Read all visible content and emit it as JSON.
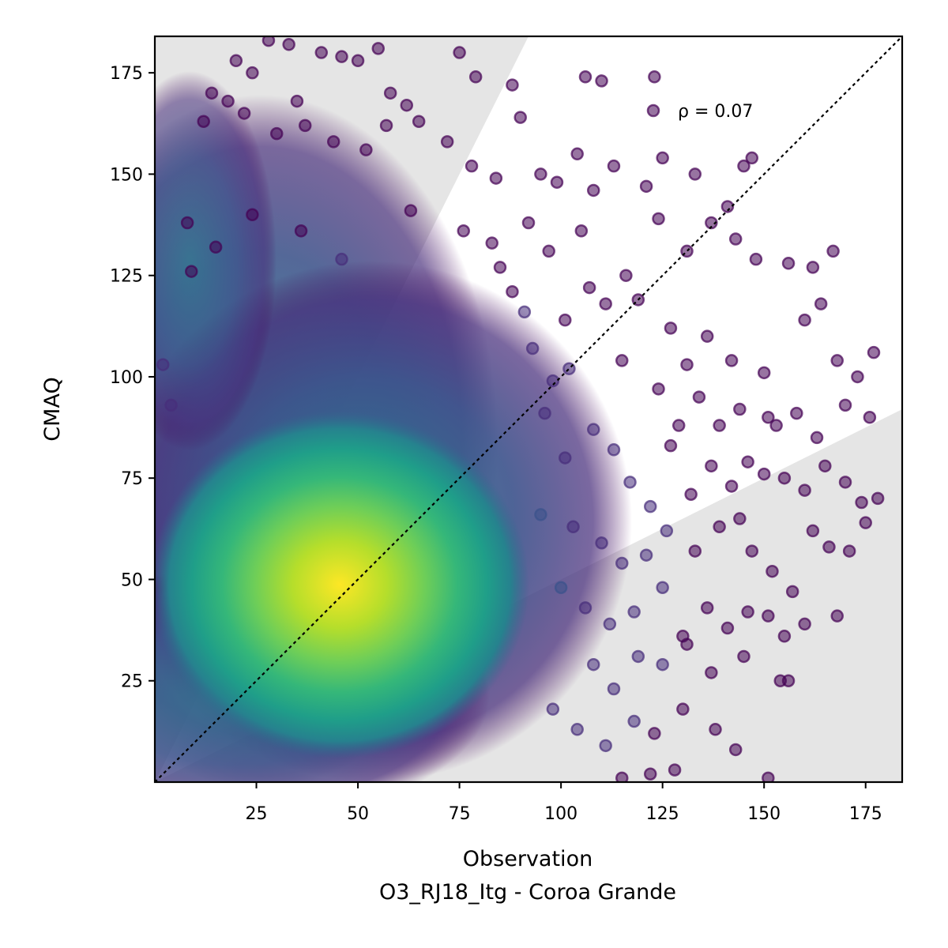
{
  "chart_data": {
    "type": "scatter",
    "xlabel": "Observation",
    "subtitle": "O3_RJ18_Itg - Coroa Grande",
    "ylabel": "CMAQ",
    "xlim": [
      0,
      184
    ],
    "ylim": [
      0,
      184
    ],
    "x_ticks": [
      25,
      50,
      75,
      100,
      125,
      150,
      175
    ],
    "y_ticks": [
      25,
      50,
      75,
      100,
      125,
      150,
      175
    ],
    "grid": false,
    "legend": {
      "label": "ρ = 0.07",
      "placement": "top-right"
    },
    "reference_line": {
      "label": "1:1",
      "style": "dotted",
      "color": "#000000"
    },
    "shaded_regions": [
      {
        "description": "factor-of-2 band above",
        "x": [
          0,
          92
        ],
        "y": [
          0,
          184
        ],
        "color": "#e5e5e5"
      },
      {
        "description": "factor-of-2 band below",
        "x": [
          0,
          184
        ],
        "y": [
          0,
          92
        ],
        "color": "#e5e5e5"
      }
    ],
    "colormap": "viridis (point density)",
    "density_peak": [
      48,
      50
    ],
    "series": [
      {
        "values": [
          [
            20,
            178
          ],
          [
            24,
            175
          ],
          [
            28,
            183
          ],
          [
            33,
            182
          ],
          [
            35,
            168
          ],
          [
            41,
            180
          ],
          [
            46,
            179
          ],
          [
            50,
            178
          ],
          [
            55,
            181
          ],
          [
            58,
            170
          ],
          [
            62,
            167
          ],
          [
            75,
            180
          ],
          [
            79,
            174
          ],
          [
            88,
            172
          ],
          [
            90,
            164
          ],
          [
            106,
            174
          ],
          [
            110,
            173
          ],
          [
            123,
            174
          ],
          [
            12,
            163
          ],
          [
            14,
            170
          ],
          [
            18,
            168
          ],
          [
            22,
            165
          ],
          [
            30,
            160
          ],
          [
            37,
            162
          ],
          [
            44,
            158
          ],
          [
            52,
            156
          ],
          [
            57,
            162
          ],
          [
            65,
            163
          ],
          [
            72,
            158
          ],
          [
            78,
            152
          ],
          [
            84,
            149
          ],
          [
            95,
            150
          ],
          [
            99,
            148
          ],
          [
            104,
            155
          ],
          [
            108,
            146
          ],
          [
            113,
            152
          ],
          [
            121,
            147
          ],
          [
            125,
            154
          ],
          [
            133,
            150
          ],
          [
            141,
            142
          ],
          [
            145,
            152
          ],
          [
            147,
            154
          ],
          [
            8,
            138
          ],
          [
            15,
            132
          ],
          [
            24,
            140
          ],
          [
            36,
            136
          ],
          [
            46,
            129
          ],
          [
            63,
            141
          ],
          [
            76,
            136
          ],
          [
            83,
            133
          ],
          [
            92,
            138
          ],
          [
            97,
            131
          ],
          [
            105,
            136
          ],
          [
            116,
            125
          ],
          [
            124,
            139
          ],
          [
            131,
            131
          ],
          [
            137,
            138
          ],
          [
            143,
            134
          ],
          [
            148,
            129
          ],
          [
            156,
            128
          ],
          [
            162,
            127
          ],
          [
            167,
            131
          ],
          [
            9,
            126
          ],
          [
            85,
            127
          ],
          [
            88,
            121
          ],
          [
            91,
            116
          ],
          [
            101,
            114
          ],
          [
            107,
            122
          ],
          [
            111,
            118
          ],
          [
            119,
            119
          ],
          [
            127,
            112
          ],
          [
            131,
            103
          ],
          [
            136,
            110
          ],
          [
            142,
            104
          ],
          [
            150,
            101
          ],
          [
            160,
            114
          ],
          [
            164,
            118
          ],
          [
            168,
            104
          ],
          [
            173,
            100
          ],
          [
            177,
            106
          ],
          [
            2,
            103
          ],
          [
            4,
            93
          ],
          [
            93,
            107
          ],
          [
            98,
            99
          ],
          [
            102,
            102
          ],
          [
            115,
            104
          ],
          [
            124,
            97
          ],
          [
            129,
            88
          ],
          [
            134,
            95
          ],
          [
            139,
            88
          ],
          [
            144,
            92
          ],
          [
            151,
            90
          ],
          [
            153,
            88
          ],
          [
            158,
            91
          ],
          [
            163,
            85
          ],
          [
            170,
            93
          ],
          [
            176,
            90
          ],
          [
            96,
            91
          ],
          [
            101,
            80
          ],
          [
            108,
            87
          ],
          [
            113,
            82
          ],
          [
            117,
            74
          ],
          [
            122,
            68
          ],
          [
            127,
            83
          ],
          [
            132,
            71
          ],
          [
            137,
            78
          ],
          [
            142,
            73
          ],
          [
            146,
            79
          ],
          [
            150,
            76
          ],
          [
            155,
            75
          ],
          [
            160,
            72
          ],
          [
            165,
            78
          ],
          [
            170,
            74
          ],
          [
            174,
            69
          ],
          [
            178,
            70
          ],
          [
            95,
            66
          ],
          [
            103,
            63
          ],
          [
            110,
            59
          ],
          [
            115,
            54
          ],
          [
            121,
            56
          ],
          [
            126,
            62
          ],
          [
            133,
            57
          ],
          [
            139,
            63
          ],
          [
            144,
            65
          ],
          [
            147,
            57
          ],
          [
            152,
            52
          ],
          [
            157,
            47
          ],
          [
            162,
            62
          ],
          [
            166,
            58
          ],
          [
            171,
            57
          ],
          [
            175,
            64
          ],
          [
            100,
            48
          ],
          [
            106,
            43
          ],
          [
            112,
            39
          ],
          [
            118,
            42
          ],
          [
            125,
            48
          ],
          [
            130,
            36
          ],
          [
            136,
            43
          ],
          [
            141,
            38
          ],
          [
            146,
            42
          ],
          [
            151,
            41
          ],
          [
            155,
            36
          ],
          [
            160,
            39
          ],
          [
            168,
            41
          ],
          [
            108,
            29
          ],
          [
            113,
            23
          ],
          [
            119,
            31
          ],
          [
            125,
            29
          ],
          [
            131,
            34
          ],
          [
            137,
            27
          ],
          [
            145,
            31
          ],
          [
            154,
            25
          ],
          [
            156,
            25
          ],
          [
            98,
            18
          ],
          [
            104,
            13
          ],
          [
            111,
            9
          ],
          [
            118,
            15
          ],
          [
            123,
            12
          ],
          [
            130,
            18
          ],
          [
            138,
            13
          ],
          [
            143,
            8
          ],
          [
            151,
            1
          ],
          [
            115,
            1
          ],
          [
            122,
            2
          ],
          [
            128,
            3
          ]
        ]
      }
    ]
  }
}
